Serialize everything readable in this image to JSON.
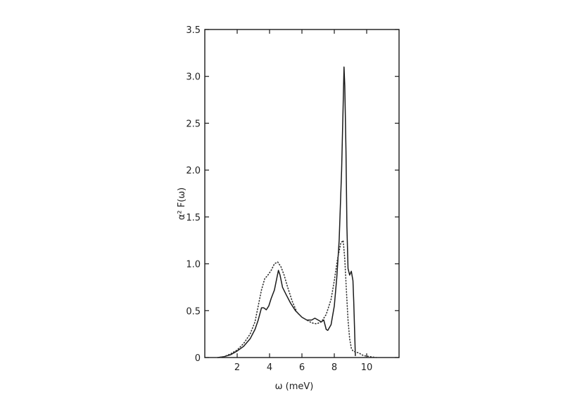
{
  "chart_data": {
    "type": "line",
    "title": "",
    "xlabel": "ω (meV)",
    "ylabel": "α² F(ω)",
    "xlim": [
      0,
      12
    ],
    "ylim": [
      0,
      3.5
    ],
    "x_ticks": [
      2,
      4,
      6,
      8,
      10
    ],
    "x_tick_labels": [
      "2",
      "4",
      "6",
      "8",
      "10"
    ],
    "y_ticks": [
      0,
      0.5,
      1.0,
      1.5,
      2.0,
      2.5,
      3.0,
      3.5
    ],
    "y_tick_labels": [
      "0",
      "0.5",
      "1.0",
      "1.5",
      "2.0",
      "2.5",
      "3.0",
      "3.5"
    ],
    "grid": false,
    "series": [
      {
        "style": "solid",
        "color": "#1a1a1a",
        "x": [
          0.8,
          1.2,
          1.6,
          2.0,
          2.4,
          2.8,
          3.1,
          3.3,
          3.5,
          3.65,
          3.8,
          3.95,
          4.1,
          4.3,
          4.45,
          4.55,
          4.65,
          4.8,
          5.0,
          5.3,
          5.6,
          6.0,
          6.3,
          6.6,
          6.8,
          7.0,
          7.2,
          7.35,
          7.5,
          7.6,
          7.8,
          8.0,
          8.15,
          8.3,
          8.45,
          8.55,
          8.6,
          8.65,
          8.72,
          8.78,
          8.85,
          8.95,
          9.05,
          9.15,
          9.2,
          9.25,
          9.3
        ],
        "y": [
          0.0,
          0.01,
          0.03,
          0.07,
          0.12,
          0.2,
          0.3,
          0.4,
          0.53,
          0.53,
          0.51,
          0.55,
          0.63,
          0.72,
          0.85,
          0.93,
          0.88,
          0.75,
          0.68,
          0.58,
          0.5,
          0.43,
          0.4,
          0.4,
          0.42,
          0.4,
          0.38,
          0.4,
          0.3,
          0.29,
          0.35,
          0.55,
          0.85,
          1.25,
          2.0,
          2.7,
          3.1,
          2.9,
          2.2,
          1.4,
          0.95,
          0.88,
          0.92,
          0.82,
          0.6,
          0.3,
          0.02
        ]
      },
      {
        "style": "dotted",
        "color": "#333333",
        "x": [
          0.8,
          1.2,
          1.6,
          2.0,
          2.4,
          2.8,
          3.1,
          3.3,
          3.5,
          3.7,
          3.9,
          4.1,
          4.3,
          4.5,
          4.7,
          4.9,
          5.1,
          5.4,
          5.7,
          6.0,
          6.3,
          6.6,
          6.9,
          7.2,
          7.5,
          7.8,
          8.0,
          8.2,
          8.4,
          8.55,
          8.65,
          8.75,
          8.85,
          8.95,
          9.05,
          9.15,
          9.3,
          9.5,
          9.8,
          10.2,
          10.6
        ],
        "y": [
          0.0,
          0.01,
          0.04,
          0.08,
          0.15,
          0.25,
          0.38,
          0.55,
          0.72,
          0.84,
          0.88,
          0.93,
          1.0,
          1.02,
          0.97,
          0.88,
          0.76,
          0.6,
          0.48,
          0.43,
          0.4,
          0.37,
          0.36,
          0.38,
          0.46,
          0.62,
          0.82,
          1.05,
          1.22,
          1.25,
          1.05,
          0.7,
          0.4,
          0.2,
          0.1,
          0.07,
          0.06,
          0.05,
          0.02,
          0.01,
          0.0
        ]
      }
    ]
  }
}
